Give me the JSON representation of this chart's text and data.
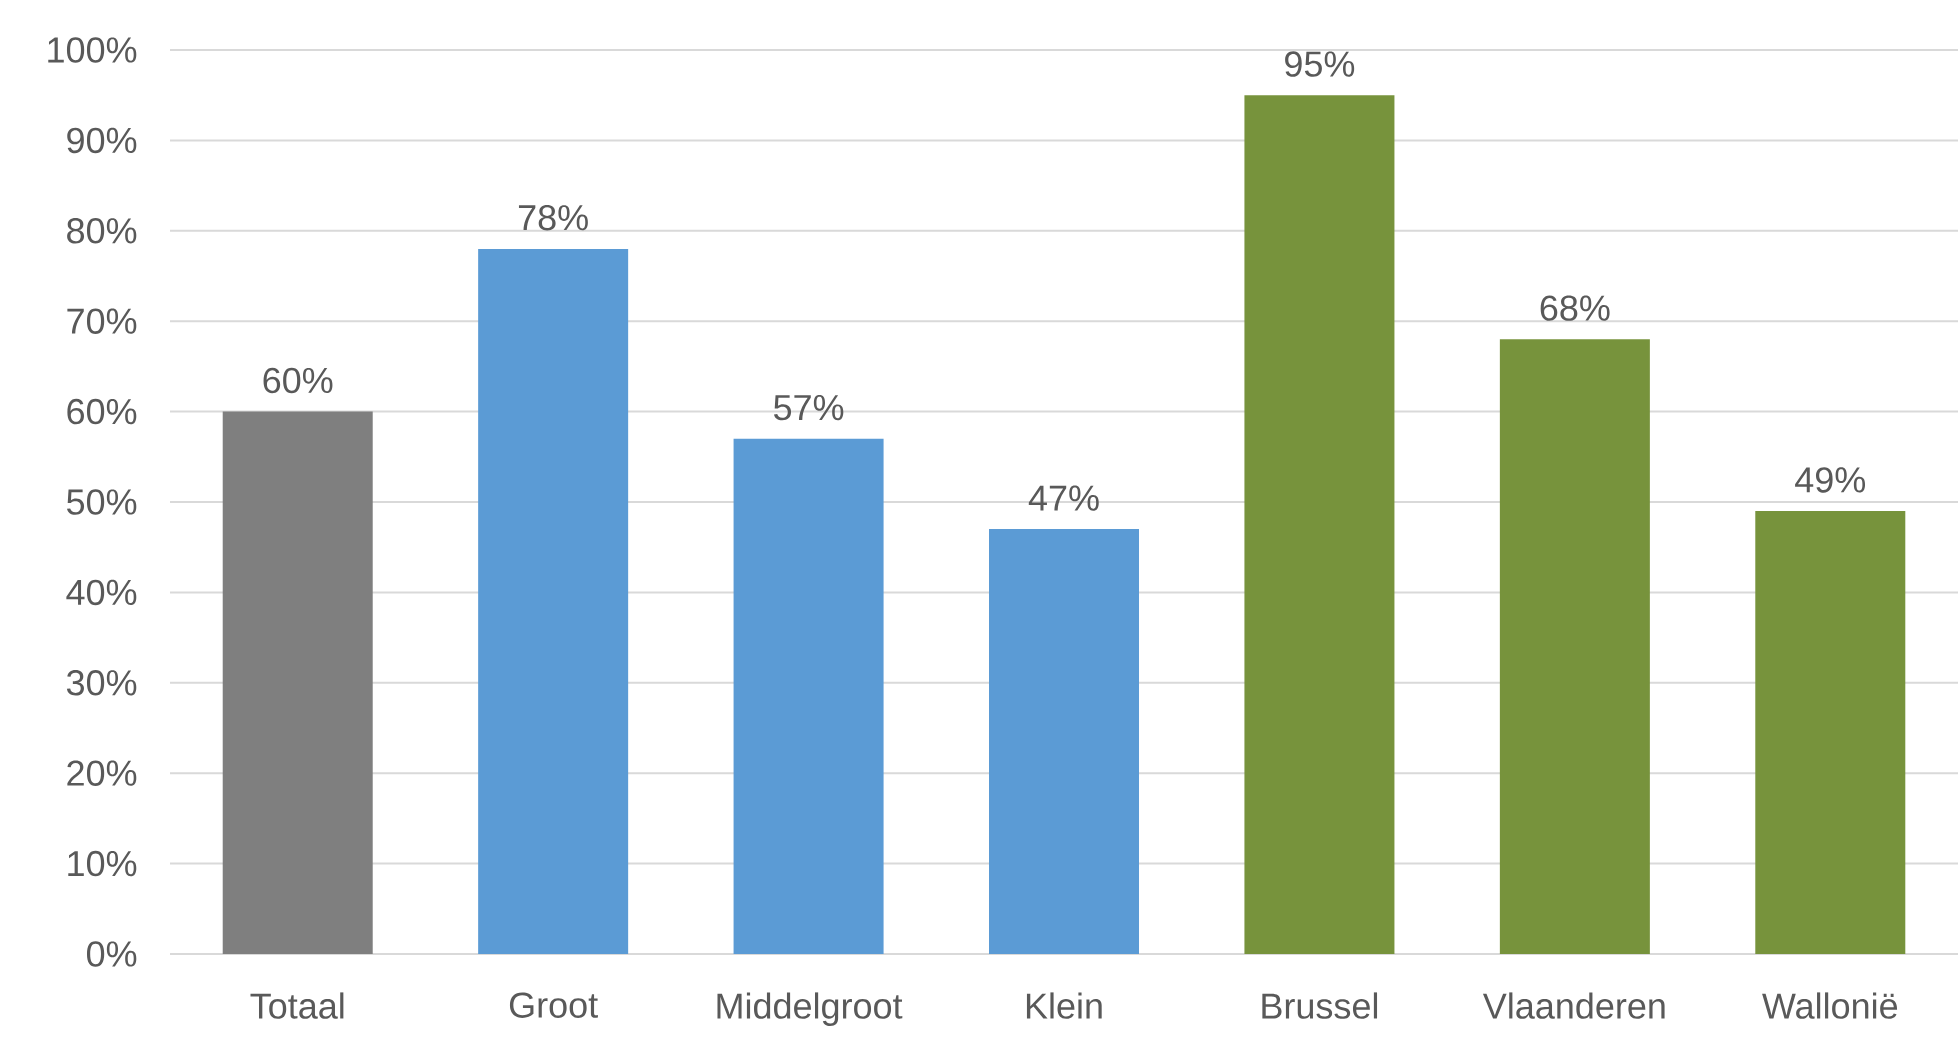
{
  "chart_data": {
    "type": "bar",
    "categories": [
      "Totaal",
      "Groot",
      "Middelgroot",
      "Klein",
      "Brussel",
      "Vlaanderen",
      "Wallonië"
    ],
    "values": [
      60,
      78,
      57,
      47,
      95,
      68,
      49
    ],
    "colors": [
      "#7f7f7f",
      "#5b9bd5",
      "#5b9bd5",
      "#5b9bd5",
      "#77933c",
      "#77933c",
      "#77933c"
    ],
    "value_labels": [
      "60%",
      "78%",
      "57%",
      "47%",
      "95%",
      "68%",
      "49%"
    ],
    "ylim": [
      0,
      100
    ],
    "yticks": [
      {
        "value": 0,
        "label": "0%"
      },
      {
        "value": 10,
        "label": "10%"
      },
      {
        "value": 20,
        "label": "20%"
      },
      {
        "value": 30,
        "label": "30%"
      },
      {
        "value": 40,
        "label": "40%"
      },
      {
        "value": 50,
        "label": "50%"
      },
      {
        "value": 60,
        "label": "60%"
      },
      {
        "value": 70,
        "label": "70%"
      },
      {
        "value": 80,
        "label": "80%"
      },
      {
        "value": 90,
        "label": "90%"
      },
      {
        "value": 100,
        "label": "100%"
      }
    ],
    "grid": "y"
  }
}
